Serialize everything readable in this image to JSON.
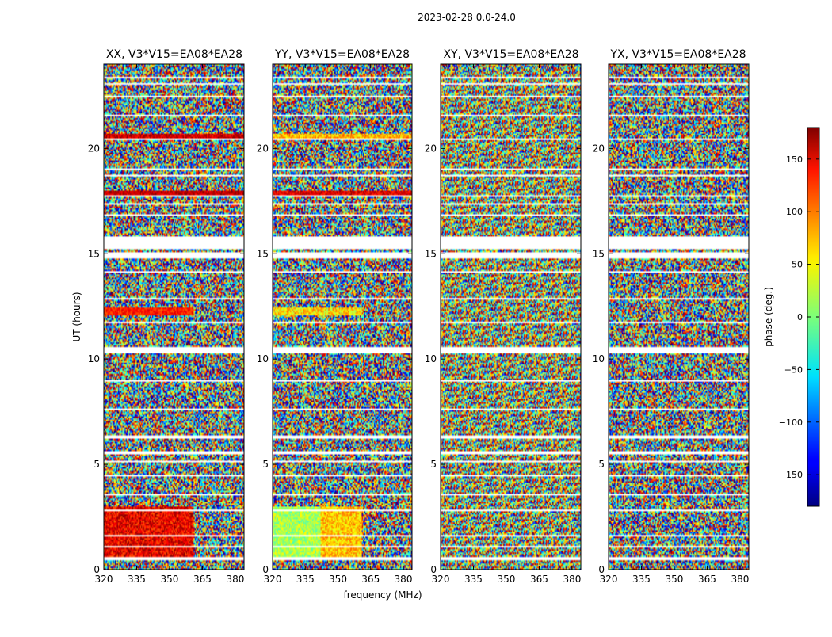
{
  "figure_title": "2023-02-28 0.0-24.0",
  "chart_data": [
    {
      "type": "heatmap",
      "title": "XX, V3*V15=EA08*EA28",
      "xlabel": "",
      "ylabel": "UT (hours)",
      "x_ticks": [
        320,
        335,
        350,
        365,
        380
      ],
      "y_ticks": [
        0,
        5,
        10,
        15,
        20
      ],
      "xlim": [
        320,
        384
      ],
      "ylim": [
        0,
        24
      ]
    },
    {
      "type": "heatmap",
      "title": "YY, V3*V15=EA08*EA28",
      "xlabel": "frequency (MHz)",
      "ylabel": "",
      "x_ticks": [
        320,
        335,
        350,
        365,
        380
      ],
      "y_ticks": [
        0,
        5,
        10,
        15,
        20
      ],
      "xlim": [
        320,
        384
      ],
      "ylim": [
        0,
        24
      ]
    },
    {
      "type": "heatmap",
      "title": "XY, V3*V15=EA08*EA28",
      "xlabel": "",
      "ylabel": "",
      "x_ticks": [
        320,
        335,
        350,
        365,
        380
      ],
      "y_ticks": [
        0,
        5,
        10,
        15,
        20
      ],
      "xlim": [
        320,
        384
      ],
      "ylim": [
        0,
        24
      ]
    },
    {
      "type": "heatmap",
      "title": "YX, V3*V15=EA08*EA28",
      "xlabel": "",
      "ylabel": "",
      "x_ticks": [
        320,
        335,
        350,
        365,
        380
      ],
      "y_ticks": [
        0,
        5,
        10,
        15,
        20
      ],
      "xlim": [
        320,
        384
      ],
      "ylim": [
        0,
        24
      ]
    }
  ],
  "colorbar": {
    "label": "phase (deg.)",
    "ticks": [
      150,
      100,
      50,
      0,
      -50,
      -100,
      -150
    ],
    "range": [
      -180,
      180
    ],
    "colormap": "jet"
  },
  "flagged_ut_hours": [
    [
      0.45,
      0.62
    ],
    [
      1.05,
      1.12
    ],
    [
      1.55,
      1.63
    ],
    [
      2.75,
      2.83
    ],
    [
      3.55,
      3.62
    ],
    [
      4.45,
      4.52
    ],
    [
      5.1,
      5.18
    ],
    [
      5.5,
      5.6
    ],
    [
      6.2,
      6.35
    ],
    [
      7.6,
      7.68
    ],
    [
      8.9,
      8.98
    ],
    [
      10.3,
      10.55
    ],
    [
      11.7,
      11.78
    ],
    [
      12.8,
      12.88
    ],
    [
      14.1,
      14.18
    ],
    [
      14.8,
      15.05
    ],
    [
      15.2,
      15.85
    ],
    [
      16.8,
      16.88
    ],
    [
      17.3,
      17.38
    ],
    [
      17.7,
      17.78
    ],
    [
      18.7,
      18.78
    ],
    [
      19.0,
      19.08
    ],
    [
      20.4,
      20.48
    ],
    [
      21.5,
      21.58
    ],
    [
      22.4,
      22.48
    ],
    [
      23.0,
      23.08
    ],
    [
      23.3,
      23.38
    ]
  ],
  "phase_features": [
    {
      "panel": 0,
      "f_lo": 320,
      "f_hi": 361,
      "t_lo": 0.6,
      "t_hi": 3.0,
      "phase": 140,
      "spread": 40
    },
    {
      "panel": 0,
      "f_lo": 320,
      "f_hi": 361,
      "t_lo": 12.1,
      "t_hi": 12.45,
      "phase": 125,
      "spread": 25
    },
    {
      "panel": 0,
      "f_lo": 320,
      "f_hi": 384,
      "t_lo": 20.45,
      "t_hi": 20.7,
      "phase": 150,
      "spread": 30
    },
    {
      "panel": 0,
      "f_lo": 320,
      "f_hi": 384,
      "t_lo": 17.8,
      "t_hi": 18.0,
      "phase": 155,
      "spread": 25
    },
    {
      "panel": 1,
      "f_lo": 320,
      "f_hi": 342,
      "t_lo": 0.6,
      "t_hi": 3.0,
      "phase": 15,
      "spread": 35
    },
    {
      "panel": 1,
      "f_lo": 342,
      "f_hi": 361,
      "t_lo": 0.6,
      "t_hi": 3.0,
      "phase": 65,
      "spread": 35
    },
    {
      "panel": 1,
      "f_lo": 320,
      "f_hi": 361,
      "t_lo": 12.1,
      "t_hi": 12.45,
      "phase": 55,
      "spread": 45
    },
    {
      "panel": 1,
      "f_lo": 320,
      "f_hi": 384,
      "t_lo": 20.45,
      "t_hi": 20.7,
      "phase": 70,
      "spread": 40
    },
    {
      "panel": 1,
      "f_lo": 320,
      "f_hi": 384,
      "t_lo": 17.8,
      "t_hi": 18.0,
      "phase": 145,
      "spread": 30
    }
  ]
}
